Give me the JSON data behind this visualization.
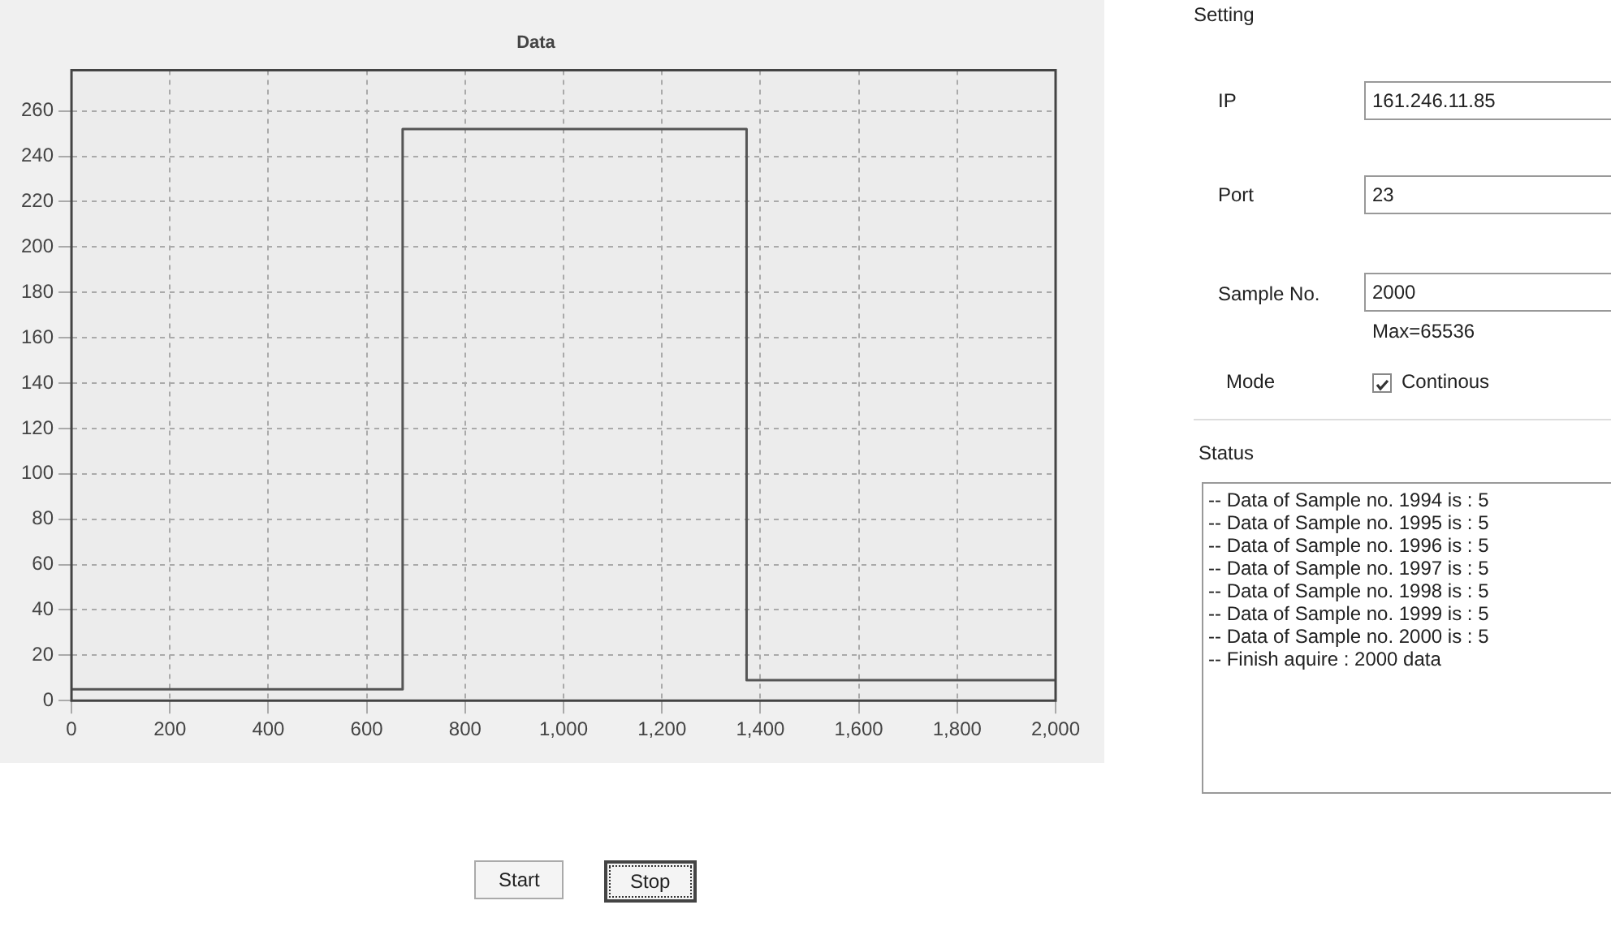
{
  "chart_data": [
    {
      "type": "line",
      "title": "Data",
      "x": [
        0,
        673,
        673,
        1372,
        1372,
        2000
      ],
      "series": [
        {
          "color": "#555555",
          "values": [
            5,
            5,
            252,
            252,
            9,
            9
          ]
        }
      ],
      "xlim": [
        0,
        2000
      ],
      "xticks": [
        0,
        200,
        400,
        600,
        800,
        {
          "value": 1000,
          "label": "1,000"
        },
        {
          "value": 1200,
          "label": "1,200"
        },
        {
          "value": 1400,
          "label": "1,400"
        },
        {
          "value": 1600,
          "label": "1,600"
        },
        {
          "value": 1800,
          "label": "1,800"
        },
        {
          "value": 2000,
          "label": "2,000"
        }
      ],
      "ylim": [
        0,
        278
      ],
      "yticks": [
        0,
        20,
        40,
        60,
        80,
        100,
        120,
        140,
        160,
        180,
        200,
        220,
        240,
        260
      ],
      "grid": true,
      "legend": false,
      "marker": "none",
      "line_style": "solid"
    },
    {
      "type": "other",
      "annotations": [
        "Setting",
        "IP",
        "161.246.11.85",
        "Port",
        "23",
        "Sample No.",
        "2000",
        "Max=65536",
        "Mode",
        "Continous",
        "Status",
        "-- Data of Sample no. 1994 is : 5",
        "-- Data of Sample no. 1995 is : 5",
        "-- Data of Sample no. 1996 is : 5",
        "-- Data of Sample no. 1997 is : 5",
        "-- Data of Sample no. 1998 is : 5",
        "-- Data of Sample no. 1999 is : 5",
        "-- Data of Sample no. 2000 is : 5",
        "-- Finish aquire : 2000 data",
        "Start",
        "Stop"
      ]
    }
  ]
}
